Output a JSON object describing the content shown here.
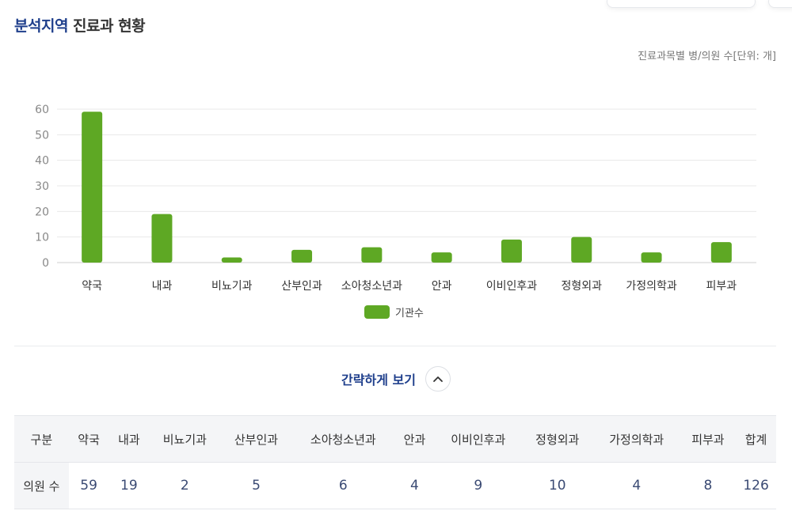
{
  "header": {
    "title_region": "분석지역",
    "title_rest": "진료과 현황",
    "unit_note": "진료과목별 병/의원 수[단위: 개]"
  },
  "colors": {
    "accent": "#1f3f8c",
    "bar": "#5ea824",
    "grid": "#e8e8e8"
  },
  "chart_data": {
    "type": "bar",
    "categories": [
      "약국",
      "내과",
      "비뇨기과",
      "산부인과",
      "소아청소년과",
      "안과",
      "이비인후과",
      "정형외과",
      "가정의학과",
      "피부과"
    ],
    "series": [
      {
        "name": "기관수",
        "values": [
          59,
          19,
          2,
          5,
          6,
          4,
          9,
          10,
          4,
          8
        ]
      }
    ],
    "ylim": [
      0,
      60
    ],
    "yticks": [
      0,
      10,
      20,
      30,
      40,
      50,
      60
    ],
    "grid": true,
    "legend": "bottom-center"
  },
  "toggle": {
    "label": "간략하게 보기",
    "icon": "chevron-up-icon"
  },
  "table": {
    "headers": [
      "구분",
      "약국",
      "내과",
      "비뇨기과",
      "산부인과",
      "소아청소년과",
      "안과",
      "이비인후과",
      "정형외과",
      "가정의학과",
      "피부과",
      "합계"
    ],
    "row_label": "의원 수",
    "values": [
      "59",
      "19",
      "2",
      "5",
      "6",
      "4",
      "9",
      "10",
      "4",
      "8",
      "126"
    ]
  }
}
